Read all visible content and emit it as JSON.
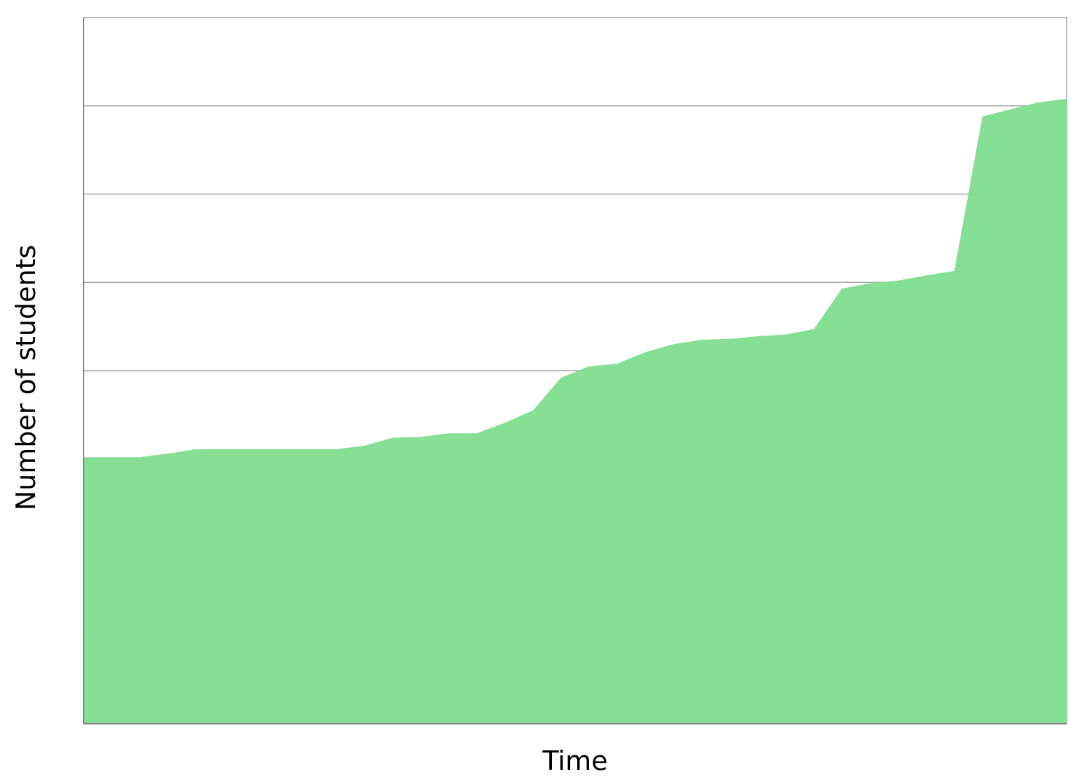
{
  "chart_data": {
    "type": "area",
    "title": "",
    "xlabel": "Time",
    "ylabel": "Number of students",
    "xlim": [
      0,
      35
    ],
    "ylim": [
      0,
      8
    ],
    "grid": true,
    "x": [
      0,
      1,
      2,
      3,
      4,
      5,
      6,
      7,
      8,
      9,
      10,
      11,
      12,
      13,
      14,
      15,
      16,
      17,
      18,
      19,
      20,
      21,
      22,
      23,
      24,
      25,
      26,
      27,
      28,
      29,
      30,
      31,
      32,
      33,
      34,
      35
    ],
    "series": [
      {
        "values": [
          3.02,
          3.02,
          3.02,
          3.06,
          3.11,
          3.11,
          3.11,
          3.11,
          3.11,
          3.11,
          3.15,
          3.24,
          3.25,
          3.29,
          3.29,
          3.41,
          3.55,
          3.92,
          4.05,
          4.08,
          4.21,
          4.3,
          4.35,
          4.36,
          4.39,
          4.41,
          4.47,
          4.93,
          4.99,
          5.02,
          5.08,
          5.13,
          6.88,
          6.96,
          7.04,
          7.08
        ],
        "color": "#82de92"
      }
    ]
  }
}
